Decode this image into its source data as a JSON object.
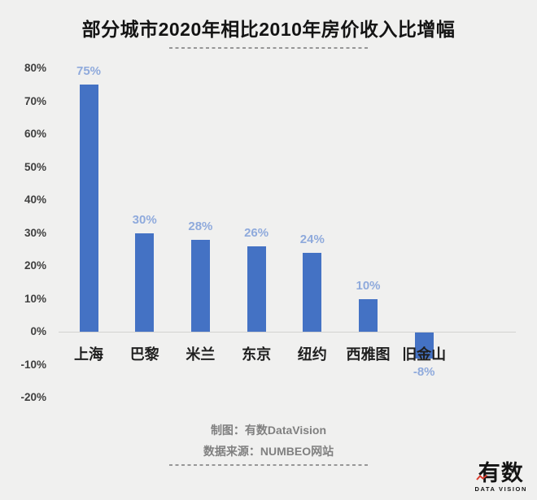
{
  "title": "部分城市2020年相比2010年房价收入比增幅",
  "chart_data": {
    "type": "bar",
    "title": "部分城市2020年相比2010年房价收入比增幅",
    "categories": [
      "上海",
      "巴黎",
      "米兰",
      "东京",
      "纽约",
      "西雅图",
      "旧金山"
    ],
    "values": [
      75,
      30,
      28,
      26,
      24,
      10,
      -8
    ],
    "data_labels": [
      "75%",
      "30%",
      "28%",
      "26%",
      "24%",
      "10%",
      "-8%"
    ],
    "xlabel": "",
    "ylabel": "",
    "ylim": [
      -20,
      80
    ],
    "ytick_step": 10,
    "ytick_labels": [
      "80%",
      "70%",
      "60%",
      "50%",
      "40%",
      "30%",
      "20%",
      "10%",
      "0%",
      "-10%",
      "-20%"
    ],
    "grid": false,
    "legend": false,
    "bar_color": "#4472c4",
    "data_label_color": "#8faadc"
  },
  "footer": {
    "credit": "制图：有数DataVision",
    "source": "数据来源：NUMBEO网站"
  },
  "logo": {
    "wordmark": "有数",
    "subtitle": "DATA VISION",
    "accent_color": "#d93a2b"
  },
  "colors": {
    "background": "#f0f0ef",
    "axis_text": "#3f3f3f",
    "category_text": "#1f1f1f",
    "footer_text": "#808080",
    "separator": "#979797",
    "zero_line": "#d2d2d0"
  }
}
